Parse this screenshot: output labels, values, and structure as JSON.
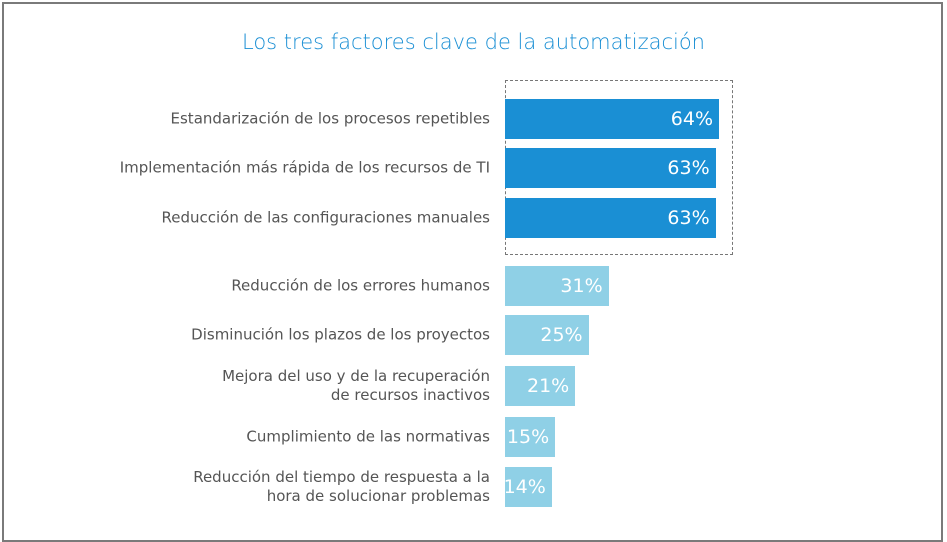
{
  "chart_data": {
    "type": "hbar",
    "title": "Los tres factores clave de la automatización",
    "categories": [
      "Estandarización de los procesos repetibles",
      "Implementación más rápida de los recursos de TI",
      "Reducción de las configuraciones manuales",
      "Reducción de los errores humanos",
      "Disminución los plazos de los proyectos",
      "Mejora del uso y de la recuperación\nde recursos inactivos",
      "Cumplimiento de las normativas",
      "Reducción del tiempo de respuesta a la\nhora de solucionar problemas"
    ],
    "values": [
      64,
      63,
      63,
      31,
      25,
      21,
      15,
      14
    ],
    "value_labels": [
      "64%",
      "63%",
      "63%",
      "31%",
      "25%",
      "21%",
      "15%",
      "14%"
    ],
    "colors": [
      "#1a8fd4",
      "#1a8fd4",
      "#1a8fd4",
      "#8fd0e6",
      "#8fd0e6",
      "#8fd0e6",
      "#8fd0e6",
      "#8fd0e6"
    ]
  }
}
